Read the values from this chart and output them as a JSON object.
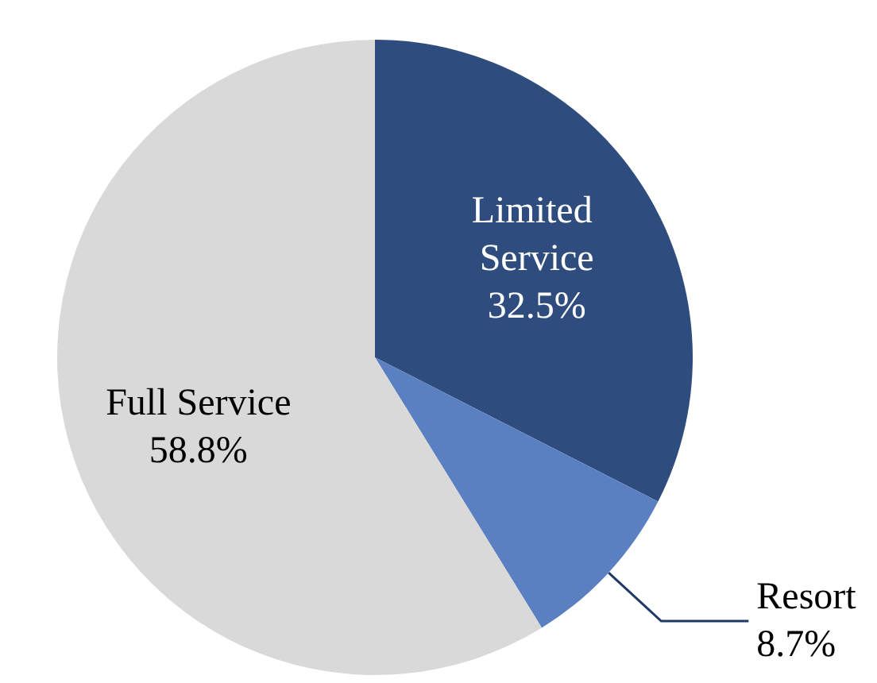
{
  "chart_data": {
    "type": "pie",
    "categories": [
      "Limited Service",
      "Resort",
      "Full Service"
    ],
    "values": [
      32.5,
      8.7,
      58.8
    ],
    "colors": [
      "#2e4d7e",
      "#5b80c1",
      "#d9d9d9"
    ],
    "value_labels": [
      "32.5%",
      "8.7%",
      "58.8%"
    ],
    "legend": false
  }
}
